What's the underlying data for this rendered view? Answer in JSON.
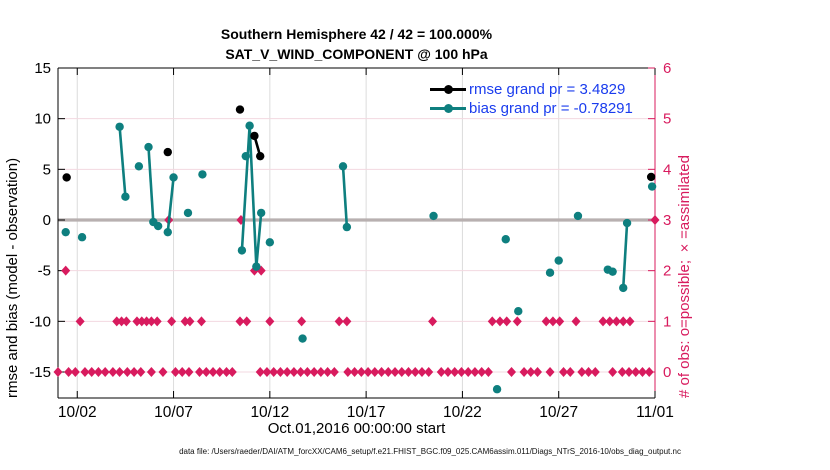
{
  "colors": {
    "rmse": "#000000",
    "bias": "#0e7f7f",
    "obs_count": "#d81b5e",
    "legend_text": "#1a3cee",
    "grid_vertical": "#dcdcdc",
    "grid_horizontal": "#f3d8e0",
    "zero_line": "#b8b0b0",
    "axis_left": "#000000",
    "axis_right": "#d81b5e",
    "background": "#ffffff"
  },
  "chart_data": {
    "type": "line",
    "title": "Southern Hemisphere 42 / 42 = 100.000%",
    "subtitle": "SAT_V_WIND_COMPONENT @ 100 hPa",
    "xlabel": "Oct.01,2016 00:00:00 start",
    "ylabel_left": "rmse and bias (model - observation)",
    "ylabel_right": "# of obs: o=possible; ×=assimilated",
    "footer": "data file: /Users/raeder/DAI/ATM_forcXX/CAM6_setup/f.e21.FHIST_BGC.f09_025.CAM6assim.011/Diags_NTrS_2016-10/obs_diag_output.nc",
    "grid": true,
    "legend_position": "top-right-inside",
    "x_axis": {
      "unit": "days since Oct 1, 2016 00:00",
      "range_days": [
        0,
        31
      ],
      "ticks": [
        {
          "day": 1,
          "label": "10/02"
        },
        {
          "day": 6,
          "label": "10/07"
        },
        {
          "day": 11,
          "label": "10/12"
        },
        {
          "day": 16,
          "label": "10/17"
        },
        {
          "day": 21,
          "label": "10/22"
        },
        {
          "day": 26,
          "label": "10/27"
        },
        {
          "day": 31,
          "label": "11/01"
        }
      ]
    },
    "y_axis_left": {
      "min": -17.6,
      "max": 15,
      "ticks": [
        15,
        10,
        5,
        0,
        -5,
        -10,
        -15
      ]
    },
    "y_axis_right": {
      "min": 0,
      "max": 6,
      "ticks": [
        0,
        1,
        2,
        3,
        4,
        5,
        6
      ],
      "note": "right 0..6 maps linearly onto left -15..15"
    },
    "legend": [
      {
        "series": "rmse",
        "label": "rmse grand pr = 3.4829"
      },
      {
        "series": "bias",
        "label": "bias grand pr = -0.78291"
      }
    ],
    "series": {
      "rmse": {
        "name": "rmse",
        "marker": "dot",
        "segments": [
          [
            [
              0.45,
              4.2
            ]
          ],
          [
            [
              5.7,
              6.7
            ]
          ],
          [
            [
              9.45,
              10.9
            ]
          ],
          [
            [
              10.2,
              8.3
            ],
            [
              10.5,
              6.3
            ]
          ],
          [
            [
              30.8,
              4.25
            ]
          ]
        ]
      },
      "bias": {
        "name": "bias",
        "marker": "dot",
        "segments": [
          [
            [
              0.4,
              -1.2
            ]
          ],
          [
            [
              1.25,
              -1.7
            ]
          ],
          [
            [
              3.2,
              9.2
            ],
            [
              3.5,
              2.3
            ]
          ],
          [
            [
              4.2,
              5.3
            ]
          ],
          [
            [
              4.7,
              7.2
            ],
            [
              4.95,
              -0.2
            ]
          ],
          [
            [
              5.2,
              -0.6
            ]
          ],
          [
            [
              5.7,
              -1.2
            ],
            [
              6.0,
              4.2
            ]
          ],
          [
            [
              6.75,
              0.7
            ]
          ],
          [
            [
              7.5,
              4.5
            ]
          ],
          [
            [
              9.55,
              -3.0
            ],
            [
              9.95,
              9.3
            ],
            [
              10.3,
              -4.6
            ],
            [
              10.55,
              0.7
            ]
          ],
          [
            [
              9.75,
              6.3
            ]
          ],
          [
            [
              11.0,
              -2.2
            ]
          ],
          [
            [
              12.7,
              -11.7
            ]
          ],
          [
            [
              14.8,
              5.3
            ],
            [
              15.0,
              -0.7
            ]
          ],
          [
            [
              19.5,
              0.4
            ]
          ],
          [
            [
              22.8,
              -16.7
            ]
          ],
          [
            [
              23.25,
              -1.9
            ]
          ],
          [
            [
              23.9,
              -9.0
            ]
          ],
          [
            [
              25.55,
              -5.2
            ]
          ],
          [
            [
              26.0,
              -4.0
            ]
          ],
          [
            [
              27.0,
              0.4
            ]
          ],
          [
            [
              28.55,
              -4.9
            ],
            [
              28.8,
              -5.1
            ]
          ],
          [
            [
              29.35,
              -6.7
            ],
            [
              29.55,
              -0.3
            ]
          ],
          [
            [
              30.85,
              3.3
            ]
          ]
        ]
      },
      "obs_counts": {
        "name": "# of obs (possible = assimilated)",
        "marker": "diamond",
        "points_by_count": {
          "3": [
            5.75,
            9.5,
            31.0
          ],
          "2": [
            0.4,
            10.2,
            10.55
          ],
          "1": [
            1.15,
            3.05,
            3.3,
            3.55,
            4.1,
            4.35,
            4.6,
            4.85,
            5.15,
            5.9,
            6.6,
            6.85,
            7.45,
            9.45,
            9.8,
            11.0,
            12.65,
            14.6,
            15.0,
            19.45,
            22.55,
            22.95,
            23.3,
            23.85,
            25.35,
            25.7,
            26.05,
            26.9,
            28.3,
            28.65,
            29.0,
            29.35,
            29.7
          ],
          "0": [
            0.0,
            0.55,
            0.9,
            1.4,
            1.75,
            2.1,
            2.45,
            2.85,
            3.2,
            3.6,
            3.95,
            4.3,
            4.85,
            5.45,
            6.1,
            6.45,
            6.8,
            7.35,
            7.7,
            8.05,
            8.4,
            8.75,
            9.05,
            10.5,
            10.85,
            11.2,
            11.55,
            11.9,
            12.25,
            12.6,
            12.95,
            13.3,
            13.65,
            14.0,
            14.35,
            15.05,
            15.4,
            15.75,
            16.1,
            16.45,
            16.8,
            17.15,
            17.5,
            17.85,
            18.2,
            18.55,
            18.9,
            19.25,
            19.9,
            20.25,
            20.6,
            20.95,
            21.3,
            21.65,
            22.0,
            22.35,
            23.55,
            24.2,
            24.55,
            24.9,
            25.55,
            26.25,
            26.6,
            27.2,
            27.55,
            27.9,
            28.8,
            29.3,
            29.65,
            30.0,
            30.35,
            30.7
          ]
        }
      }
    },
    "zero_reference_line": {
      "value": 0
    }
  }
}
